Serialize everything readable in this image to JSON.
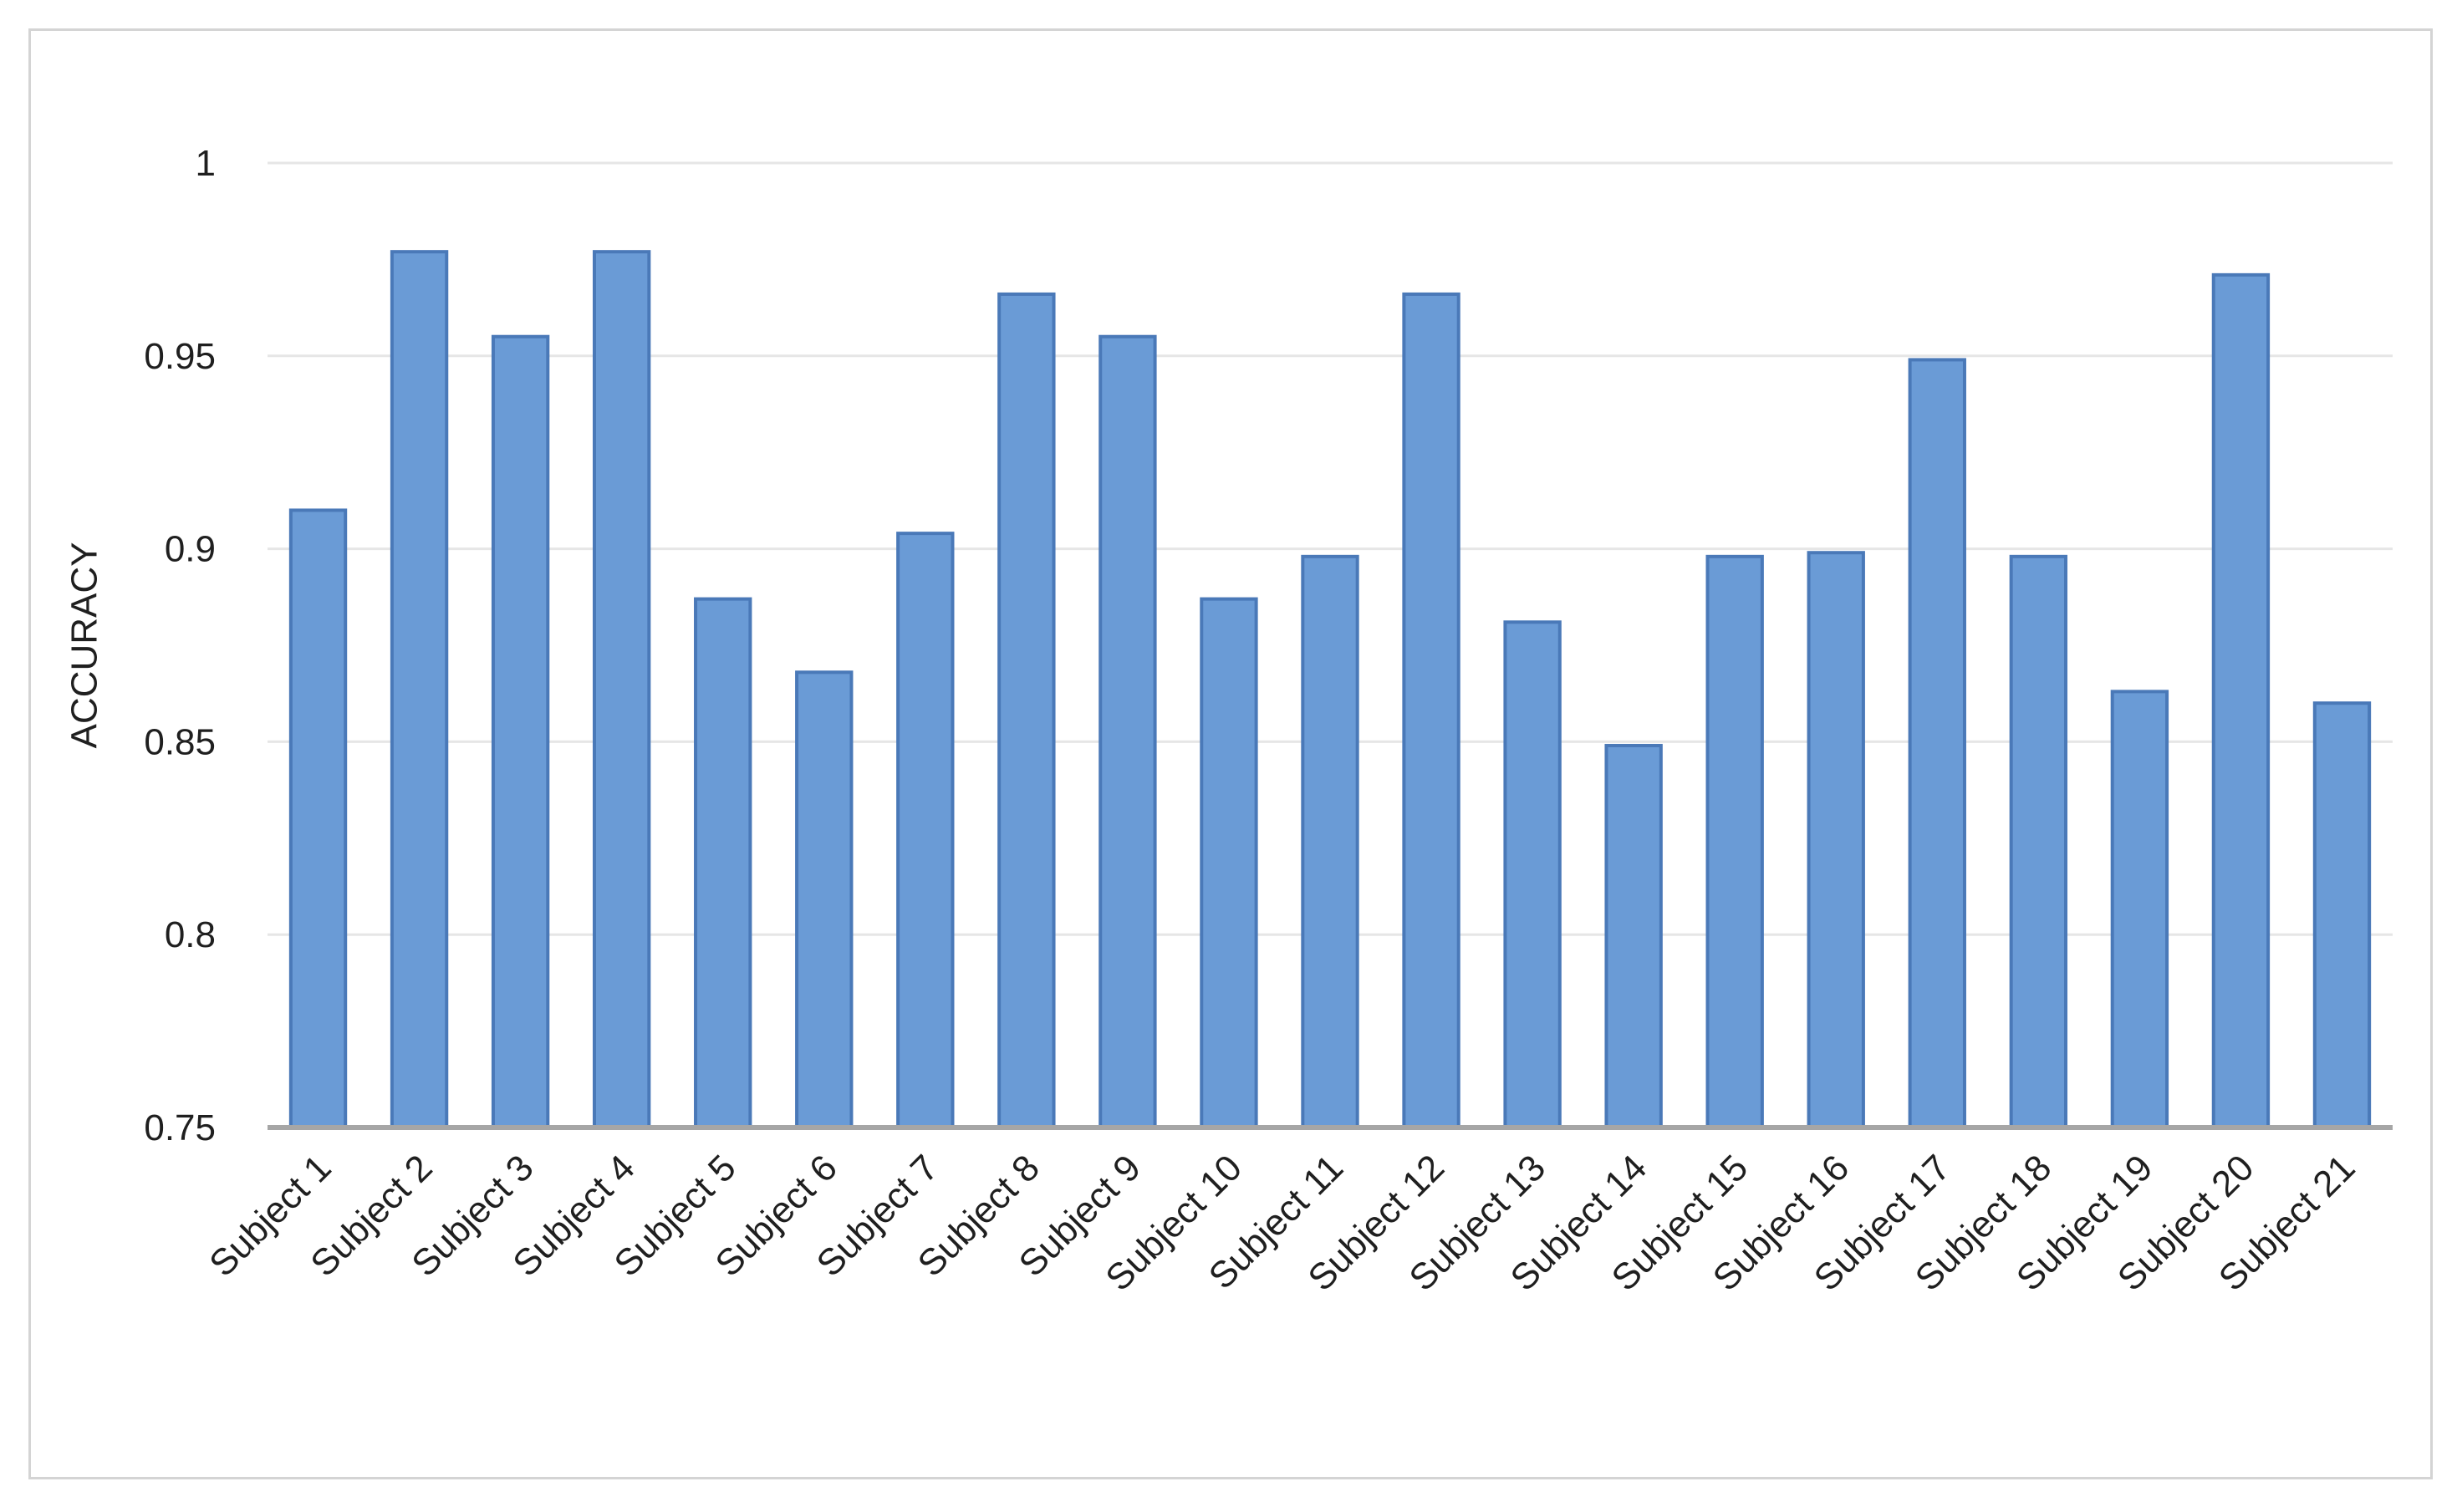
{
  "chart_data": {
    "type": "bar",
    "title": "",
    "xlabel": "",
    "ylabel": "ACCURACY",
    "ylim": [
      0.75,
      1.0
    ],
    "yticks": [
      "0.75",
      "0.8",
      "0.85",
      "0.9",
      "0.95",
      "1"
    ],
    "grid": true,
    "legend": "none",
    "categories": [
      "Subject 1",
      "Subject 2",
      "Subject 3",
      "Subject 4",
      "Subject 5",
      "Subject 6",
      "Subject 7",
      "Subject 8",
      "Subject 9",
      "Subject 10",
      "Subject 11",
      "Subject 12",
      "Subject 13",
      "Subject 14",
      "Subject 15",
      "Subject 16",
      "Subject 17",
      "Subject 18",
      "Subject 19",
      "Subject 20",
      "Subject 21"
    ],
    "values": [
      0.91,
      0.977,
      0.955,
      0.977,
      0.887,
      0.868,
      0.904,
      0.966,
      0.955,
      0.887,
      0.898,
      0.966,
      0.881,
      0.849,
      0.898,
      0.899,
      0.949,
      0.898,
      0.863,
      0.971,
      0.86
    ],
    "colors": {
      "bar": "#6a9bd6",
      "bar_edge": "#4a79b8",
      "grid": "#e6e6e6",
      "axis": "#a6a6a6"
    }
  }
}
